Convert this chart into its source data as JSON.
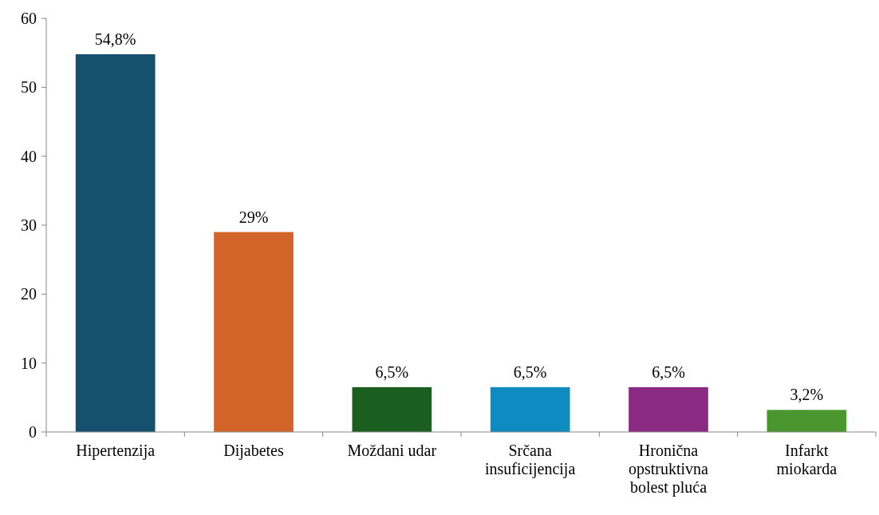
{
  "chart_data": {
    "type": "bar",
    "categories": [
      "Hipertenzija",
      "Dijabetes",
      "Moždani udar",
      "Srčana insuficijencija",
      "Hronična opstruktivna bolest pluća",
      "Infarkt miokarda"
    ],
    "values": [
      54.8,
      29,
      6.5,
      6.5,
      6.5,
      3.2
    ],
    "colors": [
      "#15506e",
      "#d2642a",
      "#1a5e20",
      "#0e8bc0",
      "#8b2a82",
      "#4a962f"
    ],
    "value_labels": [
      "54,8%",
      "29%",
      "6,5%",
      "6,5%",
      "6,5%",
      "3,2%"
    ],
    "ylim": [
      0,
      60
    ],
    "yticks": [
      0,
      10,
      20,
      30,
      40,
      50,
      60
    ],
    "grid": false
  }
}
